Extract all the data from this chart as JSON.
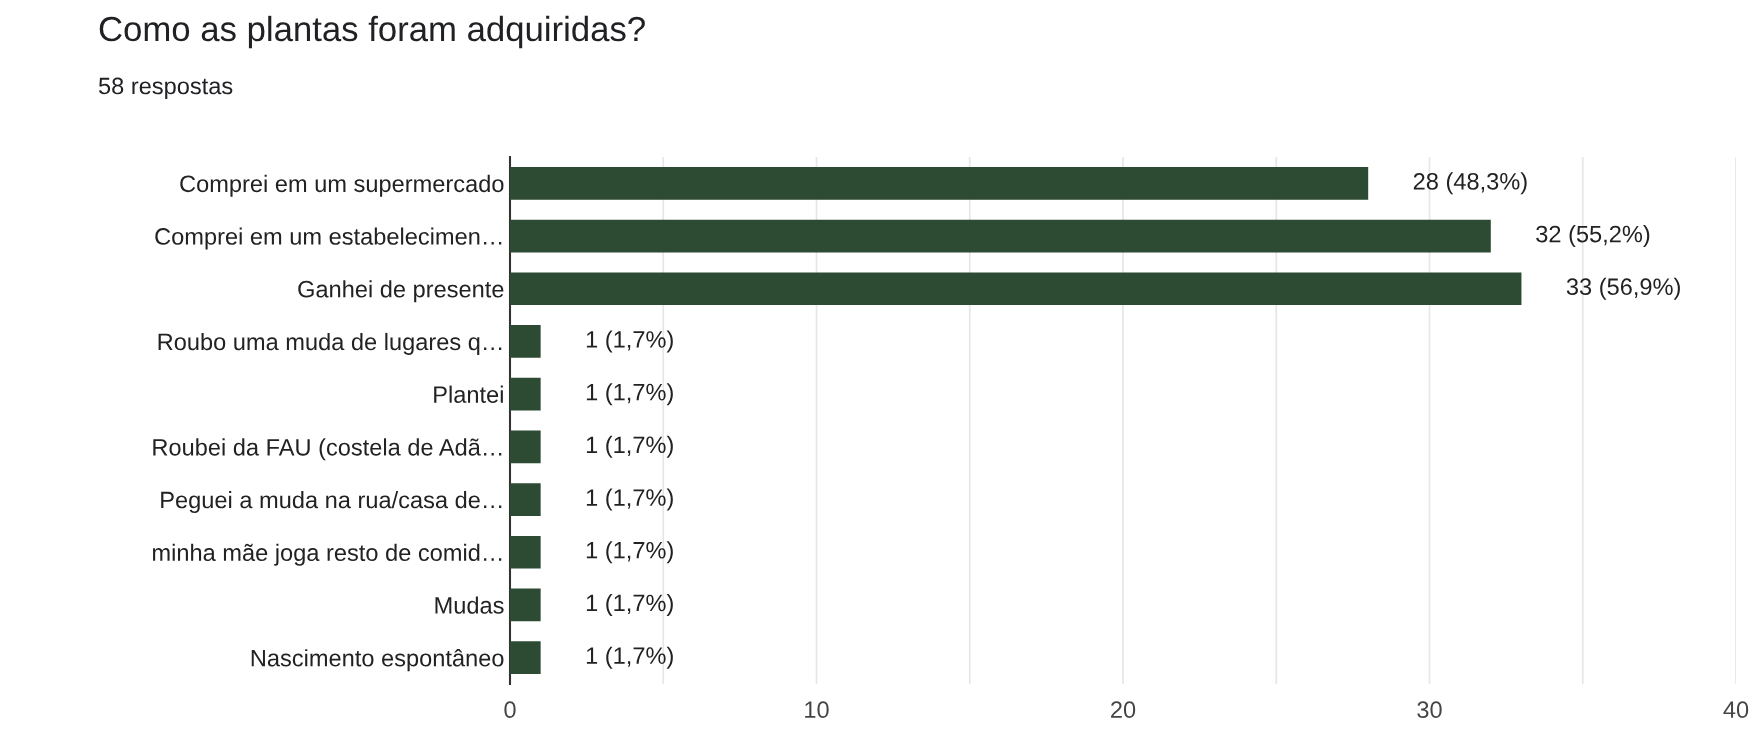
{
  "chart_data": {
    "type": "bar",
    "orientation": "horizontal",
    "title": "Como as plantas foram adquiridas?",
    "subtitle": "58 respostas",
    "categories": [
      "Comprei em um supermercado",
      "Comprei em um estabelecimen…",
      "Ganhei de presente",
      "Roubo uma muda de lugares q…",
      "Plantei",
      "Roubei da FAU (costela de Adã…",
      "Peguei a muda na rua/casa de…",
      "minha mãe joga resto de comid…",
      "Mudas",
      "Nascimento espontâneo"
    ],
    "values": [
      28,
      32,
      33,
      1,
      1,
      1,
      1,
      1,
      1,
      1
    ],
    "value_labels": [
      "28 (48,3%)",
      "32 (55,2%)",
      "33 (56,9%)",
      "1 (1,7%)",
      "1 (1,7%)",
      "1 (1,7%)",
      "1 (1,7%)",
      "1 (1,7%)",
      "1 (1,7%)",
      "1 (1,7%)"
    ],
    "color": "#2d4b33",
    "xlim": [
      0,
      40
    ],
    "xticks": [
      0,
      {
        "value": 5,
        "label": null
      },
      10,
      {
        "value": 15,
        "label": null
      },
      20,
      {
        "value": 25,
        "label": null
      },
      30,
      {
        "value": 35,
        "label": null
      },
      40
    ],
    "grid": "x"
  }
}
